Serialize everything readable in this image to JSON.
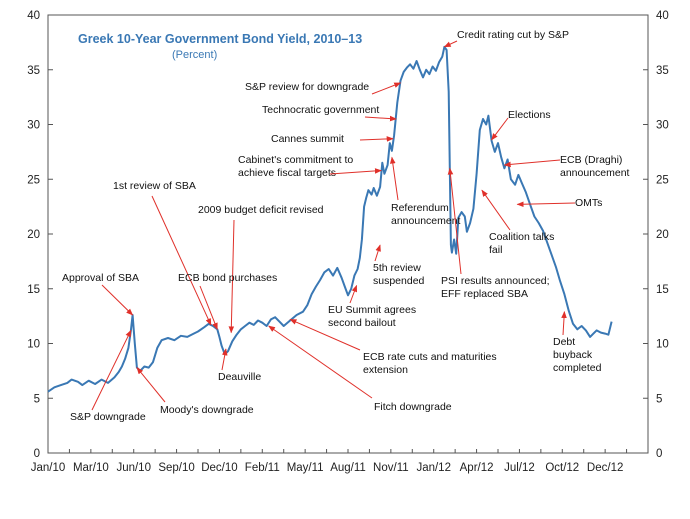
{
  "chart_data": {
    "type": "line",
    "title": "Greek 10-Year Government Bond Yield, 2010–13",
    "subtitle": "(Percent)",
    "xlabel": "",
    "ylabel": "",
    "ylim": [
      0,
      40
    ],
    "yticks": [
      0,
      5,
      10,
      15,
      20,
      25,
      30,
      35,
      40
    ],
    "yticks_right": true,
    "x_tick_labels": [
      "Jan/10",
      "Mar/10",
      "Jun/10",
      "Sep/10",
      "Dec/10",
      "Feb/11",
      "May/11",
      "Aug/11",
      "Nov/11",
      "Jan/12",
      "Apr/12",
      "Jul/12",
      "Oct/12",
      "Dec/12"
    ],
    "series": [
      {
        "name": "Greek 10-Year Government Bond Yield",
        "color": "#3a78b4",
        "points": [
          [
            0,
            5.6
          ],
          [
            0.3,
            6.0
          ],
          [
            0.6,
            6.2
          ],
          [
            0.9,
            6.4
          ],
          [
            1.1,
            6.7
          ],
          [
            1.4,
            6.5
          ],
          [
            1.6,
            6.2
          ],
          [
            1.9,
            6.6
          ],
          [
            2.2,
            6.3
          ],
          [
            2.5,
            6.7
          ],
          [
            2.8,
            6.4
          ],
          [
            3.1,
            6.9
          ],
          [
            3.3,
            7.4
          ],
          [
            3.45,
            7.9
          ],
          [
            3.6,
            8.6
          ],
          [
            3.75,
            9.6
          ],
          [
            3.87,
            11.2
          ],
          [
            3.95,
            12.6
          ],
          [
            4.05,
            10.0
          ],
          [
            4.15,
            7.8
          ],
          [
            4.3,
            7.5
          ],
          [
            4.5,
            7.9
          ],
          [
            4.7,
            7.8
          ],
          [
            4.9,
            8.3
          ],
          [
            5.1,
            9.6
          ],
          [
            5.3,
            10.3
          ],
          [
            5.6,
            10.5
          ],
          [
            5.9,
            10.3
          ],
          [
            6.2,
            10.7
          ],
          [
            6.5,
            10.6
          ],
          [
            6.8,
            10.9
          ],
          [
            7.0,
            11.1
          ],
          [
            7.3,
            11.5
          ],
          [
            7.5,
            11.8
          ],
          [
            7.7,
            11.6
          ],
          [
            7.9,
            11.3
          ],
          [
            8.0,
            10.6
          ],
          [
            8.1,
            9.8
          ],
          [
            8.25,
            9.0
          ],
          [
            8.4,
            9.3
          ],
          [
            8.6,
            10.2
          ],
          [
            8.8,
            10.8
          ],
          [
            9.0,
            11.3
          ],
          [
            9.2,
            11.6
          ],
          [
            9.4,
            11.9
          ],
          [
            9.6,
            11.7
          ],
          [
            9.8,
            12.1
          ],
          [
            10.0,
            11.9
          ],
          [
            10.2,
            11.6
          ],
          [
            10.4,
            12.2
          ],
          [
            10.6,
            12.4
          ],
          [
            10.8,
            12.0
          ],
          [
            11.0,
            11.6
          ],
          [
            11.3,
            12.1
          ],
          [
            11.6,
            12.6
          ],
          [
            11.9,
            12.9
          ],
          [
            12.1,
            13.5
          ],
          [
            12.3,
            14.5
          ],
          [
            12.5,
            15.2
          ],
          [
            12.7,
            15.8
          ],
          [
            12.9,
            16.5
          ],
          [
            13.1,
            16.8
          ],
          [
            13.3,
            16.2
          ],
          [
            13.5,
            16.9
          ],
          [
            13.7,
            16.0
          ],
          [
            13.85,
            15.2
          ],
          [
            14.0,
            14.4
          ],
          [
            14.15,
            15.0
          ],
          [
            14.3,
            16.2
          ],
          [
            14.45,
            16.8
          ],
          [
            14.55,
            17.8
          ],
          [
            14.65,
            19.5
          ],
          [
            14.75,
            22.5
          ],
          [
            14.85,
            23.3
          ],
          [
            14.95,
            24.0
          ],
          [
            15.1,
            23.6
          ],
          [
            15.2,
            24.2
          ],
          [
            15.35,
            23.5
          ],
          [
            15.5,
            24.3
          ],
          [
            15.6,
            26.5
          ],
          [
            15.7,
            25.5
          ],
          [
            15.85,
            26.3
          ],
          [
            15.95,
            28.3
          ],
          [
            16.05,
            27.6
          ],
          [
            16.15,
            29.0
          ],
          [
            16.3,
            32.0
          ],
          [
            16.45,
            34.0
          ],
          [
            16.6,
            34.8
          ],
          [
            16.75,
            35.2
          ],
          [
            16.9,
            35.5
          ],
          [
            17.05,
            35.1
          ],
          [
            17.2,
            35.8
          ],
          [
            17.35,
            35.0
          ],
          [
            17.5,
            34.3
          ],
          [
            17.65,
            35.0
          ],
          [
            17.8,
            34.6
          ],
          [
            17.95,
            35.3
          ],
          [
            18.1,
            34.9
          ],
          [
            18.25,
            35.7
          ],
          [
            18.4,
            36.2
          ],
          [
            18.5,
            37.1
          ],
          [
            18.6,
            36.8
          ],
          [
            18.7,
            33.0
          ],
          [
            18.75,
            26.0
          ],
          [
            18.8,
            19.0
          ],
          [
            18.85,
            18.3
          ],
          [
            18.95,
            19.5
          ],
          [
            19.05,
            18.2
          ],
          [
            19.15,
            21.5
          ],
          [
            19.3,
            22.0
          ],
          [
            19.45,
            21.6
          ],
          [
            19.55,
            20.2
          ],
          [
            19.7,
            21.0
          ],
          [
            19.85,
            22.3
          ],
          [
            20.0,
            25.5
          ],
          [
            20.15,
            29.5
          ],
          [
            20.3,
            30.5
          ],
          [
            20.45,
            30.0
          ],
          [
            20.55,
            30.8
          ],
          [
            20.7,
            28.5
          ],
          [
            20.85,
            27.5
          ],
          [
            21.0,
            28.3
          ],
          [
            21.15,
            27.0
          ],
          [
            21.3,
            26.0
          ],
          [
            21.45,
            26.8
          ],
          [
            21.6,
            25.0
          ],
          [
            21.8,
            24.5
          ],
          [
            21.95,
            25.4
          ],
          [
            22.1,
            24.7
          ],
          [
            22.3,
            23.8
          ],
          [
            22.5,
            22.7
          ],
          [
            22.7,
            21.6
          ],
          [
            22.9,
            21.0
          ],
          [
            23.1,
            20.3
          ],
          [
            23.3,
            19.2
          ],
          [
            23.5,
            18.1
          ],
          [
            23.7,
            17.0
          ],
          [
            23.9,
            15.7
          ],
          [
            24.1,
            14.5
          ],
          [
            24.3,
            13.0
          ],
          [
            24.5,
            11.8
          ],
          [
            24.7,
            11.3
          ],
          [
            24.9,
            11.6
          ],
          [
            25.1,
            11.2
          ],
          [
            25.3,
            10.6
          ],
          [
            25.45,
            10.9
          ],
          [
            25.6,
            11.2
          ],
          [
            25.8,
            11.0
          ],
          [
            26.0,
            10.9
          ],
          [
            26.15,
            10.8
          ],
          [
            26.3,
            12.0
          ]
        ]
      }
    ],
    "annotations": [
      {
        "lines": [
          "Approval of SBA"
        ],
        "point": [
          3.95,
          12.6
        ]
      },
      {
        "lines": [
          "S&P downgrade"
        ],
        "point": [
          3.87,
          11.2
        ]
      },
      {
        "lines": [
          "Moody's downgrade"
        ],
        "point": [
          4.15,
          7.8
        ]
      },
      {
        "lines": [
          "1st review of SBA"
        ],
        "point": [
          7.6,
          11.7
        ]
      },
      {
        "lines": [
          "2009 budget deficit revised"
        ],
        "point": [
          8.55,
          11.0
        ]
      },
      {
        "lines": [
          "ECB bond purchases"
        ],
        "point": [
          7.9,
          11.3
        ]
      },
      {
        "lines": [
          "Deauville"
        ],
        "point": [
          8.3,
          9.5
        ]
      },
      {
        "lines": [
          "Fitch downgrade"
        ],
        "point": [
          10.3,
          11.6
        ]
      },
      {
        "lines": [
          "ECB rate cuts and maturities",
          "extension"
        ],
        "point": [
          11.3,
          12.2
        ]
      },
      {
        "lines": [
          "EU Summit agrees",
          "second bailout"
        ],
        "point": [
          14.4,
          15.3
        ]
      },
      {
        "lines": [
          "5th review",
          "suspended"
        ],
        "point": [
          15.5,
          19.0
        ]
      },
      {
        "lines": [
          "Cabinet's commitment to",
          "achieve fiscal targets"
        ],
        "point": [
          15.55,
          25.8
        ]
      },
      {
        "lines": [
          "S&P review for downgrade"
        ],
        "point": [
          16.45,
          33.8
        ]
      },
      {
        "lines": [
          "Technocratic government"
        ],
        "point": [
          16.25,
          30.5
        ]
      },
      {
        "lines": [
          "Cannes summit"
        ],
        "point": [
          16.1,
          28.7
        ]
      },
      {
        "lines": [
          "Referendum",
          "announcement"
        ],
        "point": [
          16.05,
          27.0
        ]
      },
      {
        "lines": [
          "Credit rating cut by S&P"
        ],
        "point": [
          18.5,
          37.1
        ]
      },
      {
        "lines": [
          "PSI results announced;",
          "EFF replaced SBA"
        ],
        "point": [
          18.75,
          26.0
        ]
      },
      {
        "lines": [
          "Elections"
        ],
        "point": [
          20.7,
          28.6
        ]
      },
      {
        "lines": [
          "ECB (Draghi)",
          "announcement"
        ],
        "point": [
          21.3,
          26.3
        ]
      },
      {
        "lines": [
          "OMTs"
        ],
        "point": [
          21.9,
          22.7
        ]
      },
      {
        "lines": [
          "Coalition talks",
          "fail"
        ],
        "point": [
          20.25,
          24.0
        ]
      },
      {
        "lines": [
          "Debt",
          "buyback",
          "completed"
        ],
        "point": [
          24.1,
          12.9
        ]
      }
    ]
  }
}
